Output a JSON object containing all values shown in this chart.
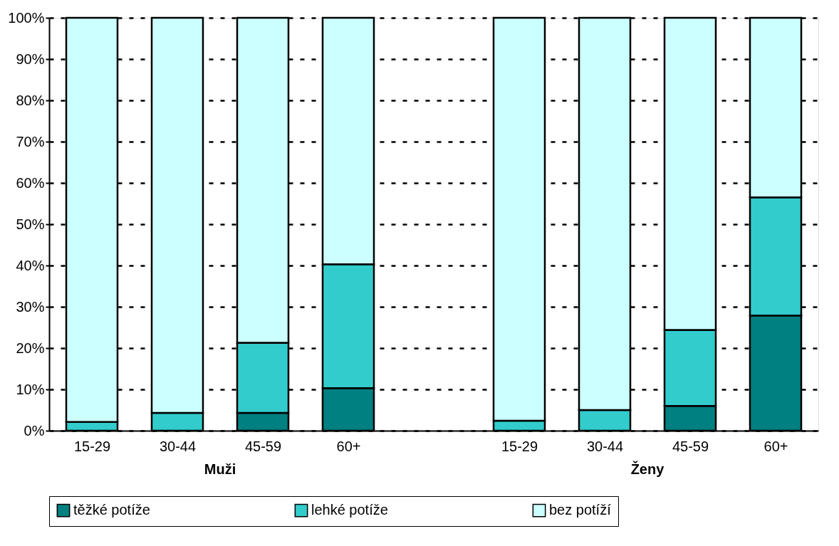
{
  "chart_data": {
    "type": "bar",
    "stacked": true,
    "categories": [
      "15-29",
      "30-44",
      "45-59",
      "60+",
      null,
      "15-29",
      "30-44",
      "45-59",
      "60+"
    ],
    "series": [
      {
        "name": "těžké potíže",
        "color": "#008080",
        "values": [
          null,
          null,
          4.3,
          10.3,
          null,
          null,
          null,
          6.0,
          27.9
        ]
      },
      {
        "name": "lehké potíže",
        "color": "#33cccc",
        "values": [
          2.1,
          4.3,
          17.0,
          30.0,
          null,
          2.4,
          5.0,
          18.4,
          28.6
        ]
      },
      {
        "name": "bez potíží",
        "color": "#ccffff",
        "values": [
          97.9,
          95.7,
          78.7,
          59.7,
          null,
          97.6,
          95.0,
          75.6,
          43.5
        ]
      }
    ],
    "ylim": [
      0,
      100
    ],
    "yticks": [
      {
        "value": 0,
        "label": "0%"
      },
      {
        "value": 10,
        "label": "10%"
      },
      {
        "value": 20,
        "label": "20%"
      },
      {
        "value": 30,
        "label": "30%"
      },
      {
        "value": 40,
        "label": "40%"
      },
      {
        "value": 50,
        "label": "50%"
      },
      {
        "value": 60,
        "label": "60%"
      },
      {
        "value": 70,
        "label": "70%"
      },
      {
        "value": 80,
        "label": "80%"
      },
      {
        "value": 90,
        "label": "90%"
      },
      {
        "value": 100,
        "label": "100%"
      }
    ],
    "grid": "y",
    "legend": "bottom",
    "annotations": [
      "Muži",
      "Ženy"
    ]
  }
}
